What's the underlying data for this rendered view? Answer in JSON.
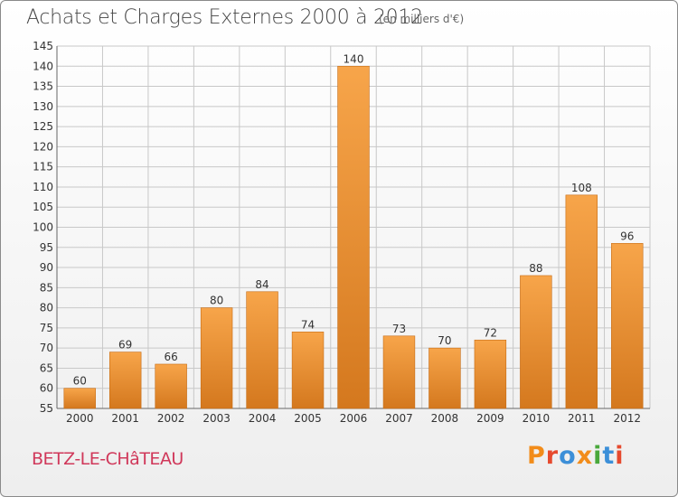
{
  "title": "Achats et Charges Externes 2000 à 2012",
  "subtitle": "(en milliers d'€)",
  "commune": "BETZ-LE-CHâTEAU",
  "logo": "Proxiti",
  "colors": {
    "bar_light": "#f7a54a",
    "bar_dark": "#d4781e",
    "grid": "#c8c8c8",
    "commune": "#d0385a",
    "logo_letters": [
      "#f28c1a",
      "#e64a2e",
      "#3c8fd8",
      "#f28c1a",
      "#49a83b",
      "#3c8fd8",
      "#e64a2e"
    ]
  },
  "chart_data": {
    "type": "bar",
    "categories": [
      "2000",
      "2001",
      "2002",
      "2003",
      "2004",
      "2005",
      "2006",
      "2007",
      "2008",
      "2009",
      "2010",
      "2011",
      "2012"
    ],
    "values": [
      60,
      69,
      66,
      80,
      84,
      74,
      140,
      73,
      70,
      72,
      88,
      108,
      96
    ],
    "data_labels": [
      "60",
      "69",
      "66",
      "80",
      "84",
      "74",
      "140",
      "73",
      "70",
      "72",
      "88",
      "108",
      "96"
    ],
    "ylim": [
      55,
      145
    ],
    "yticks": [
      "55",
      "60",
      "65",
      "70",
      "75",
      "80",
      "85",
      "90",
      "95",
      "100",
      "105",
      "110",
      "115",
      "120",
      "125",
      "130",
      "135",
      "140",
      "145"
    ],
    "grid": true,
    "legend": "none"
  }
}
